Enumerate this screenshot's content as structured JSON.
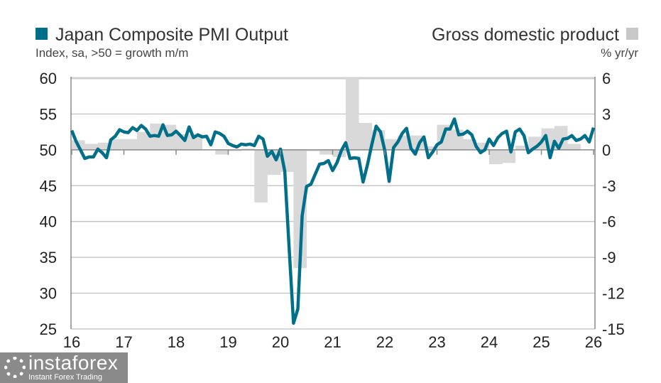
{
  "chart_data": {
    "type": "line+bar",
    "title_left": "Japan Composite PMI Output",
    "subtitle_left": "Index, sa, >50 = growth m/m",
    "title_right": "Gross domestic product",
    "subtitle_right": "% yr/yr",
    "legend_placement": "top",
    "grid": true,
    "colors": {
      "pmi": "#006f8a",
      "gdp": "#d9d9d9"
    },
    "left_axis": {
      "range": [
        25,
        60
      ],
      "ticks": [
        "60",
        "55",
        "50",
        "45",
        "40",
        "35",
        "30",
        "25"
      ]
    },
    "right_axis": {
      "range": [
        -15,
        6
      ],
      "ticks": [
        "6",
        "3",
        "0",
        "-3",
        "-6",
        "-9",
        "-12",
        "-15"
      ]
    },
    "x_axis": {
      "ticks": [
        "16",
        "17",
        "18",
        "19",
        "20",
        "21",
        "22",
        "23",
        "24",
        "25",
        "26"
      ]
    },
    "series": [
      {
        "name": "Japan Composite PMI Output",
        "type": "line",
        "axis": "left",
        "start": "2016-01",
        "frequency": "monthly",
        "values": [
          52.7,
          51.2,
          50.0,
          48.8,
          49.0,
          49.0,
          50.1,
          49.6,
          48.9,
          51.4,
          51.9,
          52.8,
          52.5,
          52.4,
          53.1,
          52.7,
          53.4,
          52.9,
          51.9,
          52.0,
          51.9,
          53.5,
          52.0,
          52.1,
          52.6,
          52.0,
          51.3,
          53.2,
          51.7,
          52.1,
          51.8,
          51.9,
          50.7,
          52.5,
          52.3,
          51.9,
          50.9,
          50.6,
          50.4,
          50.8,
          50.7,
          50.8,
          50.6,
          51.9,
          51.5,
          49.1,
          49.8,
          48.6,
          50.1,
          47.0,
          36.2,
          25.8,
          27.8,
          40.8,
          44.9,
          45.2,
          46.6,
          48.0,
          48.1,
          48.5,
          47.1,
          48.2,
          49.9,
          51.0,
          48.8,
          48.9,
          48.8,
          45.5,
          47.9,
          50.7,
          53.3,
          52.5,
          49.9,
          45.6,
          50.3,
          51.1,
          52.3,
          53.0,
          50.2,
          49.4,
          51.0,
          51.8,
          48.9,
          49.7,
          50.7,
          51.1,
          52.9,
          52.9,
          54.3,
          52.1,
          52.2,
          52.6,
          52.1,
          50.5,
          49.6,
          50.0,
          51.5,
          50.6,
          51.7,
          52.3,
          52.6,
          49.7,
          52.5,
          52.9,
          52.0,
          49.6,
          50.1,
          50.5,
          51.1,
          52.0,
          48.9,
          51.2,
          50.2,
          51.5,
          51.6,
          52.0,
          51.3,
          51.5,
          52.0,
          51.1,
          53.1
        ]
      },
      {
        "name": "Gross domestic product",
        "type": "bar",
        "axis": "right",
        "start": "2016-Q1",
        "frequency": "quarterly",
        "values": [
          0.8,
          0.5,
          0.6,
          0.9,
          0.9,
          1.5,
          2.2,
          2.1,
          1.3,
          1.3,
          0.0,
          -0.4,
          -0.1,
          0.1,
          -4.4,
          -2.1,
          -1.85,
          -9.9,
          -0.1,
          -0.4,
          -0.6,
          6.0,
          2.25,
          1.65,
          0.9,
          1.2,
          1.2,
          0.3,
          2.1,
          1.7,
          0.9,
          0.6,
          -1.2,
          -1.1,
          0.35,
          1.1,
          1.8,
          2.0,
          0.5
        ]
      }
    ]
  },
  "watermark": {
    "brand": "instaforex",
    "tagline": "Instant Forex Trading"
  }
}
